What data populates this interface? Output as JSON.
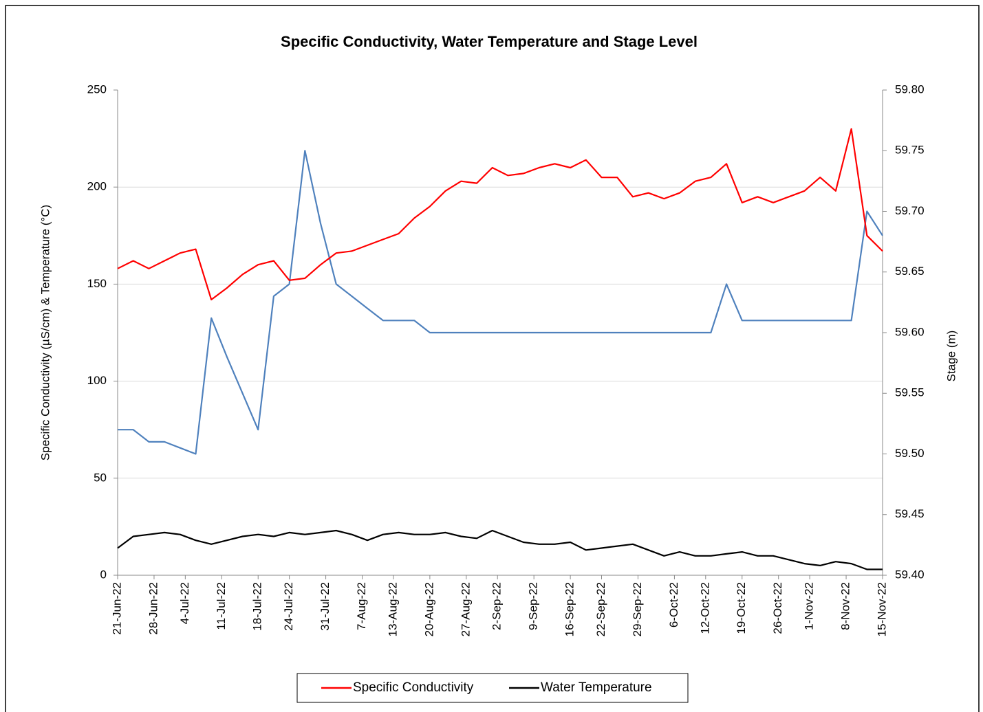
{
  "chart_data": {
    "type": "line",
    "title": "Specific Conductivity, Water Temperature and Stage Level",
    "y_label": "Specific Conductivity (µS/cm) & Temperature (°C)",
    "y2_label": "Stage (m)",
    "x": [
      "2022-06-21",
      "2022-06-24",
      "2022-06-27",
      "2022-06-30",
      "2022-07-03",
      "2022-07-06",
      "2022-07-09",
      "2022-07-12",
      "2022-07-15",
      "2022-07-18",
      "2022-07-21",
      "2022-07-24",
      "2022-07-27",
      "2022-07-30",
      "2022-08-02",
      "2022-08-05",
      "2022-08-08",
      "2022-08-11",
      "2022-08-14",
      "2022-08-17",
      "2022-08-20",
      "2022-08-23",
      "2022-08-26",
      "2022-08-29",
      "2022-09-01",
      "2022-09-04",
      "2022-09-07",
      "2022-09-10",
      "2022-09-13",
      "2022-09-16",
      "2022-09-19",
      "2022-09-22",
      "2022-09-25",
      "2022-09-28",
      "2022-10-01",
      "2022-10-04",
      "2022-10-07",
      "2022-10-10",
      "2022-10-13",
      "2022-10-16",
      "2022-10-19",
      "2022-10-22",
      "2022-10-25",
      "2022-10-28",
      "2022-10-31",
      "2022-11-03",
      "2022-11-06",
      "2022-11-09",
      "2022-11-12",
      "2022-11-15"
    ],
    "series": [
      {
        "name": "Specific Conductivity",
        "color": "#ff0000",
        "values": [
          158,
          162,
          158,
          162,
          166,
          168,
          142,
          148,
          155,
          160,
          162,
          152,
          153,
          160,
          166,
          167,
          170,
          173,
          176,
          184,
          190,
          198,
          203,
          202,
          210,
          206,
          207,
          210,
          212,
          210,
          214,
          205,
          205,
          195,
          197,
          194,
          197,
          203,
          205,
          212,
          192,
          195,
          192,
          195,
          198,
          205,
          198,
          230,
          175,
          167
        ]
      },
      {
        "name": "Water Temperature",
        "color": "#000000",
        "values": [
          14,
          20,
          21,
          22,
          21,
          18,
          16,
          18,
          20,
          21,
          20,
          22,
          21,
          22,
          23,
          21,
          18,
          21,
          22,
          21,
          21,
          22,
          20,
          19,
          23,
          20,
          17,
          16,
          16,
          17,
          13,
          14,
          15,
          16,
          13,
          10,
          12,
          10,
          10,
          11,
          12,
          10,
          10,
          8,
          6,
          5,
          7,
          6,
          3,
          3
        ]
      },
      {
        "color": "#4f81bd",
        "axis": "y2",
        "values": [
          59.52,
          59.52,
          59.51,
          59.51,
          59.505,
          59.5,
          59.612,
          59.58,
          59.55,
          59.52,
          59.63,
          59.64,
          59.75,
          59.69,
          59.64,
          59.63,
          59.62,
          59.61,
          59.61,
          59.61,
          59.6,
          59.6,
          59.6,
          59.6,
          59.6,
          59.6,
          59.6,
          59.6,
          59.6,
          59.6,
          59.6,
          59.6,
          59.6,
          59.6,
          59.6,
          59.6,
          59.6,
          59.6,
          59.6,
          59.64,
          59.61,
          59.61,
          59.61,
          59.61,
          59.61,
          59.61,
          59.61,
          59.61,
          59.7,
          59.68
        ]
      }
    ],
    "xlim": [
      "2022-06-21",
      "2022-11-15"
    ],
    "xticks": [
      {
        "value": "2022-06-21",
        "label": "21-Jun-22"
      },
      {
        "value": "2022-06-28",
        "label": "28-Jun-22"
      },
      {
        "value": "2022-07-04",
        "label": "4-Jul-22"
      },
      {
        "value": "2022-07-11",
        "label": "11-Jul-22"
      },
      {
        "value": "2022-07-18",
        "label": "18-Jul-22"
      },
      {
        "value": "2022-07-24",
        "label": "24-Jul-22"
      },
      {
        "value": "2022-07-31",
        "label": "31-Jul-22"
      },
      {
        "value": "2022-08-07",
        "label": "7-Aug-22"
      },
      {
        "value": "2022-08-13",
        "label": "13-Aug-22"
      },
      {
        "value": "2022-08-20",
        "label": "20-Aug-22"
      },
      {
        "value": "2022-08-27",
        "label": "27-Aug-22"
      },
      {
        "value": "2022-09-02",
        "label": "2-Sep-22"
      },
      {
        "value": "2022-09-09",
        "label": "9-Sep-22"
      },
      {
        "value": "2022-09-16",
        "label": "16-Sep-22"
      },
      {
        "value": "2022-09-22",
        "label": "22-Sep-22"
      },
      {
        "value": "2022-09-29",
        "label": "29-Sep-22"
      },
      {
        "value": "2022-10-06",
        "label": "6-Oct-22"
      },
      {
        "value": "2022-10-12",
        "label": "12-Oct-22"
      },
      {
        "value": "2022-10-19",
        "label": "19-Oct-22"
      },
      {
        "value": "2022-10-26",
        "label": "26-Oct-22"
      },
      {
        "value": "2022-11-01",
        "label": "1-Nov-22"
      },
      {
        "value": "2022-11-08",
        "label": "8-Nov-22"
      },
      {
        "value": "2022-11-15",
        "label": "15-Nov-22"
      }
    ],
    "ylim": [
      0,
      250
    ],
    "yticks": [
      0,
      50,
      100,
      150,
      200,
      250
    ],
    "y2lim": [
      59.4,
      59.8
    ],
    "y2ticks": [
      {
        "value": 59.4,
        "label": "59.40"
      },
      {
        "value": 59.45,
        "label": "59.45"
      },
      {
        "value": 59.5,
        "label": "59.50"
      },
      {
        "value": 59.55,
        "label": "59.55"
      },
      {
        "value": 59.6,
        "label": "59.60"
      },
      {
        "value": 59.65,
        "label": "59.65"
      },
      {
        "value": 59.7,
        "label": "59.70"
      },
      {
        "value": 59.75,
        "label": "59.75"
      },
      {
        "value": 59.8,
        "label": "59.80"
      }
    ],
    "grid": true,
    "legend": "bottom"
  }
}
